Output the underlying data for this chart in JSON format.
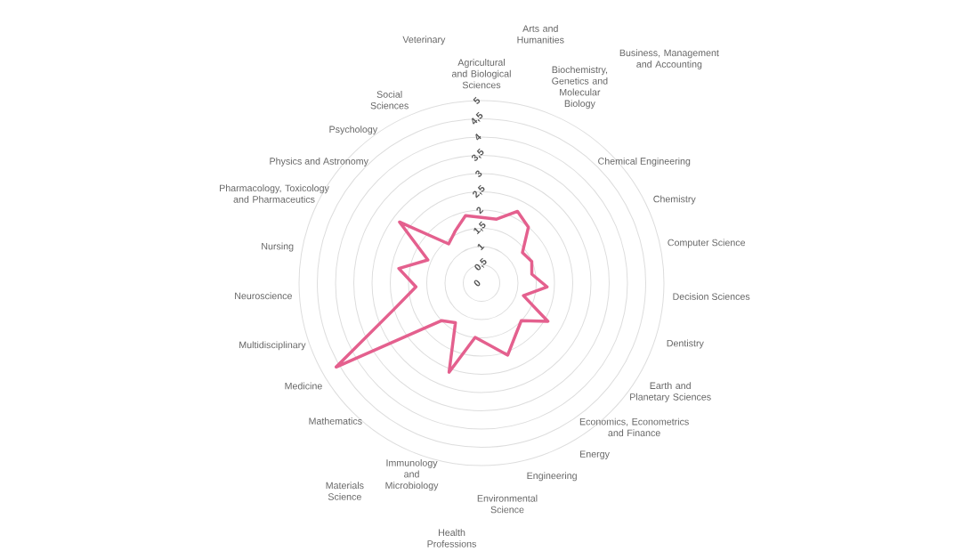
{
  "chart_data": {
    "type": "radar",
    "categories": [
      "Agricultural and Biological Sciences",
      "Arts and Humanities",
      "Biochemistry, Genetics and Molecular Biology",
      "Business, Management and Accounting",
      "Chemical Engineering",
      "Chemistry",
      "Computer Science",
      "Decision Sciences",
      "Dentistry",
      "Earth and Planetary Sciences",
      "Economics, Econometrics and Finance",
      "Energy",
      "Engineering",
      "Environmental Science",
      "Health Professions",
      "Immunology and Microbiology",
      "Materials Science",
      "Mathematics",
      "Medicine",
      "Multidisciplinary",
      "Neuroscience",
      "Nursing",
      "Pharmacology, Toxicology and Pharmaceutics",
      "Physics and Astronomy",
      "Psychology",
      "Social Sciences",
      "Veterinary"
    ],
    "series": [
      {
        "color": "#e4608e",
        "values": [
          1.8,
          1.8,
          2.2,
          2.0,
          1.4,
          1.5,
          1.4,
          1.8,
          1.2,
          2.1,
          1.5,
          1.7,
          2.1,
          1.7,
          1.5,
          2.6,
          1.3,
          1.5,
          4.6,
          2.5,
          1.8,
          2.3,
          1.6,
          2.8,
          1.4,
          1.6,
          1.9
        ]
      }
    ],
    "ylim": [
      0,
      5
    ],
    "yticks": [
      {
        "value": 0,
        "label": "0"
      },
      {
        "value": 0.5,
        "label": "0,5"
      },
      {
        "value": 1,
        "label": "1"
      },
      {
        "value": 1.5,
        "label": "1,5"
      },
      {
        "value": 2,
        "label": "2"
      },
      {
        "value": 2.5,
        "label": "2,5"
      },
      {
        "value": 3,
        "label": "3"
      },
      {
        "value": 3.5,
        "label": "3,5"
      },
      {
        "value": 4,
        "label": "4"
      },
      {
        "value": 4.5,
        "label": "4,5"
      },
      {
        "value": 5,
        "label": "5"
      }
    ],
    "grid": true,
    "marker": "none",
    "line_style": "solid"
  }
}
